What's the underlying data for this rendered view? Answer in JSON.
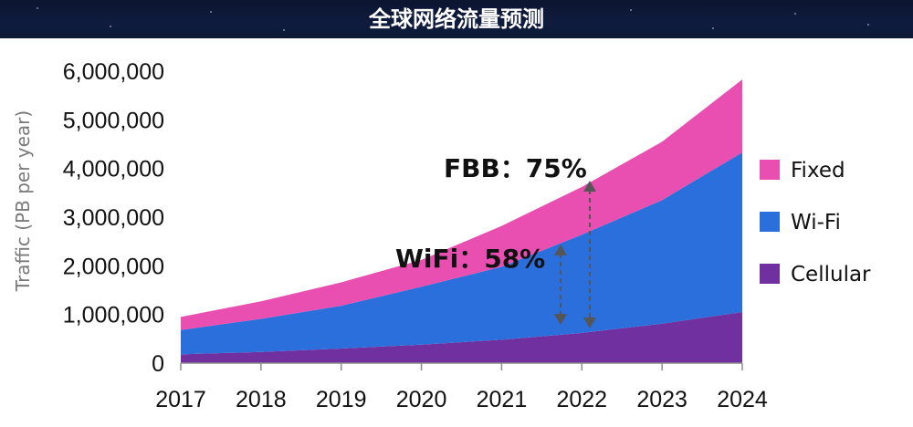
{
  "header": {
    "title": "全球网络流量预测"
  },
  "chart_data": {
    "type": "area",
    "stacked": true,
    "title": "全球网络流量预测",
    "xlabel": "",
    "ylabel": "Traffic (PB per year)",
    "categories": [
      "2017",
      "2018",
      "2019",
      "2020",
      "2021",
      "2022",
      "2023",
      "2024"
    ],
    "ylim": [
      0,
      6000000
    ],
    "yticks": [
      "0",
      "1,000,000",
      "2,000,000",
      "3,000,000",
      "4,000,000",
      "5,000,000",
      "6,000,000"
    ],
    "series": [
      {
        "name": "Cellular",
        "color": "#7030a0",
        "values": [
          180000,
          230000,
          300000,
          380000,
          480000,
          620000,
          810000,
          1050000
        ]
      },
      {
        "name": "Wi-Fi",
        "color": "#2a6fdb",
        "values": [
          500000,
          680000,
          880000,
          1190000,
          1500000,
          2020000,
          2540000,
          3280000
        ]
      },
      {
        "name": "Fixed",
        "color": "#e84fb0",
        "values": [
          270000,
          360000,
          480000,
          550000,
          840000,
          980000,
          1200000,
          1500000
        ]
      }
    ],
    "legend": {
      "position": "right",
      "order": [
        "Fixed",
        "Wi-Fi",
        "Cellular"
      ]
    },
    "annotations": [
      {
        "text": "FBB：75%"
      },
      {
        "text": "WiFi：58%"
      }
    ],
    "grid": false
  }
}
